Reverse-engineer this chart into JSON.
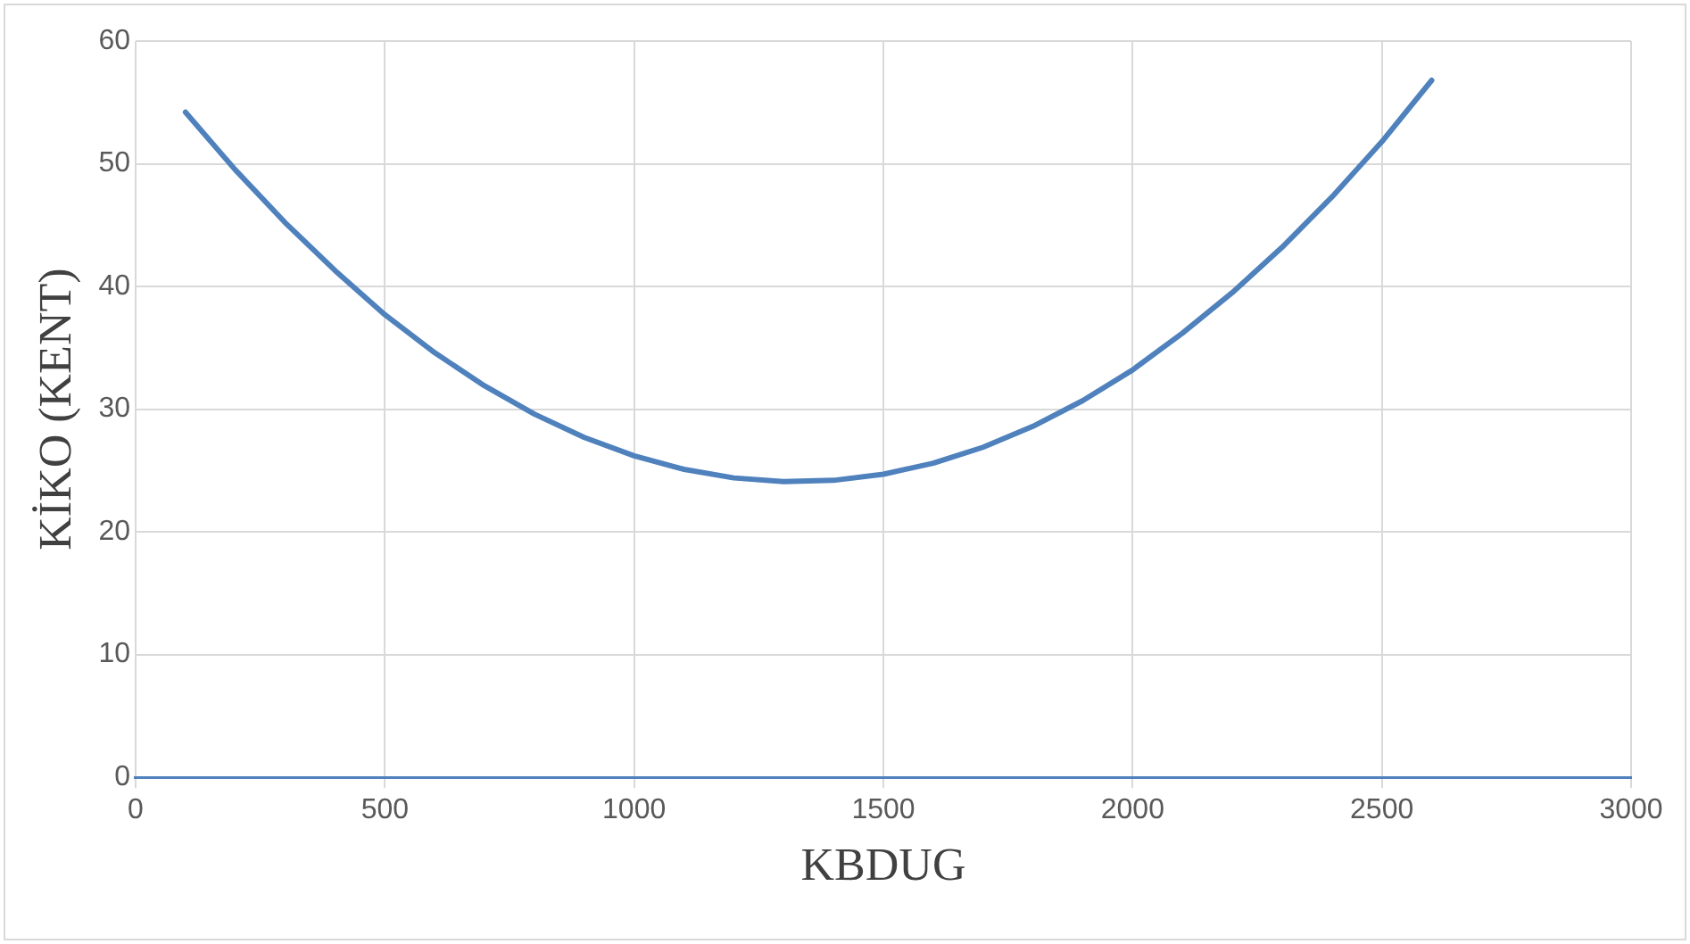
{
  "chart_data": {
    "type": "line",
    "xlabel": "KBDUG",
    "ylabel": "KİKO (KENT)",
    "x": [
      100,
      200,
      300,
      400,
      500,
      600,
      700,
      800,
      900,
      1000,
      1100,
      1200,
      1300,
      1400,
      1500,
      1600,
      1700,
      1800,
      1900,
      2000,
      2100,
      2200,
      2300,
      2400,
      2500,
      2600
    ],
    "series": [
      {
        "color": "#4f81bd",
        "values": [
          54.2,
          49.5,
          45.2,
          41.3,
          37.7,
          34.6,
          31.9,
          29.6,
          27.7,
          26.2,
          25.1,
          24.4,
          24.1,
          24.2,
          24.7,
          25.6,
          26.9,
          28.6,
          30.7,
          33.2,
          36.2,
          39.5,
          43.2,
          47.3,
          51.8,
          56.8
        ]
      }
    ],
    "xlim": [
      0,
      3000
    ],
    "xticks": [
      0,
      500,
      1000,
      1500,
      2000,
      2500,
      3000
    ],
    "ylim": [
      0,
      60
    ],
    "yticks": [
      0,
      10,
      20,
      30,
      40,
      50,
      60
    ],
    "grid": true,
    "legend": false,
    "marker": "none",
    "line_style": "solid"
  }
}
